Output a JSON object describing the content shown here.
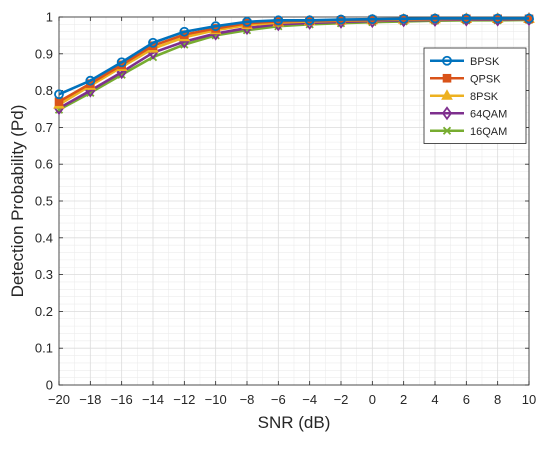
{
  "chart_data": {
    "type": "line",
    "title": "",
    "xlabel": "SNR (dB)",
    "ylabel": "Detection Probability (Pd)",
    "xlim": [
      -20,
      10
    ],
    "ylim": [
      0,
      1
    ],
    "grid": true,
    "legend_position": "top-right",
    "x": [
      -20,
      -18,
      -16,
      -14,
      -12,
      -10,
      -8,
      -6,
      -4,
      -2,
      0,
      2,
      4,
      6,
      8,
      10
    ],
    "x_ticks": [
      -20,
      -18,
      -16,
      -14,
      -12,
      -10,
      -8,
      -6,
      -4,
      -2,
      0,
      2,
      4,
      6,
      8,
      10
    ],
    "x_tick_labels": [
      "−20",
      "−18",
      "−16",
      "−14",
      "−12",
      "−10",
      "−8",
      "−6",
      "−4",
      "−2",
      "0",
      "2",
      "4",
      "6",
      "8",
      "10"
    ],
    "y_ticks": [
      0,
      0.1,
      0.2,
      0.3,
      0.4,
      0.5,
      0.6,
      0.7,
      0.8,
      0.9,
      1
    ],
    "y_tick_labels": [
      "0",
      "0.1",
      "0.2",
      "0.3",
      "0.4",
      "0.5",
      "0.6",
      "0.7",
      "0.8",
      "0.9",
      "1"
    ],
    "series": [
      {
        "name": "BPSK",
        "color": "#0072BD",
        "marker": "circle",
        "values": [
          0.79,
          0.827,
          0.877,
          0.93,
          0.96,
          0.975,
          0.987,
          0.991,
          0.991,
          0.993,
          0.994,
          0.995,
          0.996,
          0.996,
          0.996,
          0.996
        ]
      },
      {
        "name": "QPSK",
        "color": "#D95319",
        "marker": "square",
        "values": [
          0.77,
          0.819,
          0.87,
          0.922,
          0.952,
          0.969,
          0.983,
          0.988,
          0.99,
          0.991,
          0.992,
          0.994,
          0.995,
          0.995,
          0.995,
          0.995
        ]
      },
      {
        "name": "8PSK",
        "color": "#EDB120",
        "marker": "triangle",
        "values": [
          0.762,
          0.813,
          0.864,
          0.914,
          0.945,
          0.964,
          0.978,
          0.985,
          0.988,
          0.99,
          0.991,
          0.993,
          0.994,
          0.995,
          0.995,
          0.995
        ]
      },
      {
        "name": "64QAM",
        "color": "#7E2F8E",
        "marker": "diamond",
        "values": [
          0.752,
          0.8,
          0.85,
          0.903,
          0.933,
          0.955,
          0.97,
          0.98,
          0.984,
          0.987,
          0.989,
          0.991,
          0.992,
          0.993,
          0.993,
          0.994
        ]
      },
      {
        "name": "16QAM",
        "color": "#77AC30",
        "marker": "x",
        "values": [
          0.748,
          0.794,
          0.843,
          0.891,
          0.925,
          0.95,
          0.964,
          0.975,
          0.98,
          0.983,
          0.986,
          0.988,
          0.99,
          0.991,
          0.991,
          0.992
        ]
      }
    ]
  }
}
